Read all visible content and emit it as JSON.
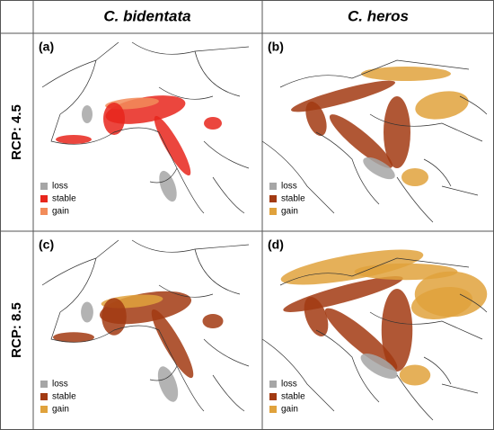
{
  "header": {
    "columns": [
      "C. bidentata",
      "C. heros"
    ]
  },
  "rows": [
    {
      "label": "RCP: 4.5",
      "panels": [
        {
          "tag": "(a)",
          "legend": [
            {
              "label": "loss",
              "color": "#a6a6a6"
            },
            {
              "label": "stable",
              "color": "#e8261c"
            },
            {
              "label": "gain",
              "color": "#f28c5a"
            }
          ]
        },
        {
          "tag": "(b)",
          "legend": [
            {
              "label": "loss",
              "color": "#a6a6a6"
            },
            {
              "label": "stable",
              "color": "#a23a12"
            },
            {
              "label": "gain",
              "color": "#e0a23c"
            }
          ]
        }
      ]
    },
    {
      "label": "RCP: 8.5",
      "panels": [
        {
          "tag": "(c)",
          "legend": [
            {
              "label": "loss",
              "color": "#a6a6a6"
            },
            {
              "label": "stable",
              "color": "#a23a12"
            },
            {
              "label": "gain",
              "color": "#e0a23c"
            }
          ]
        },
        {
          "tag": "(d)",
          "legend": [
            {
              "label": "loss",
              "color": "#a6a6a6"
            },
            {
              "label": "stable",
              "color": "#a23a12"
            },
            {
              "label": "gain",
              "color": "#e0a23c"
            }
          ]
        }
      ]
    }
  ]
}
